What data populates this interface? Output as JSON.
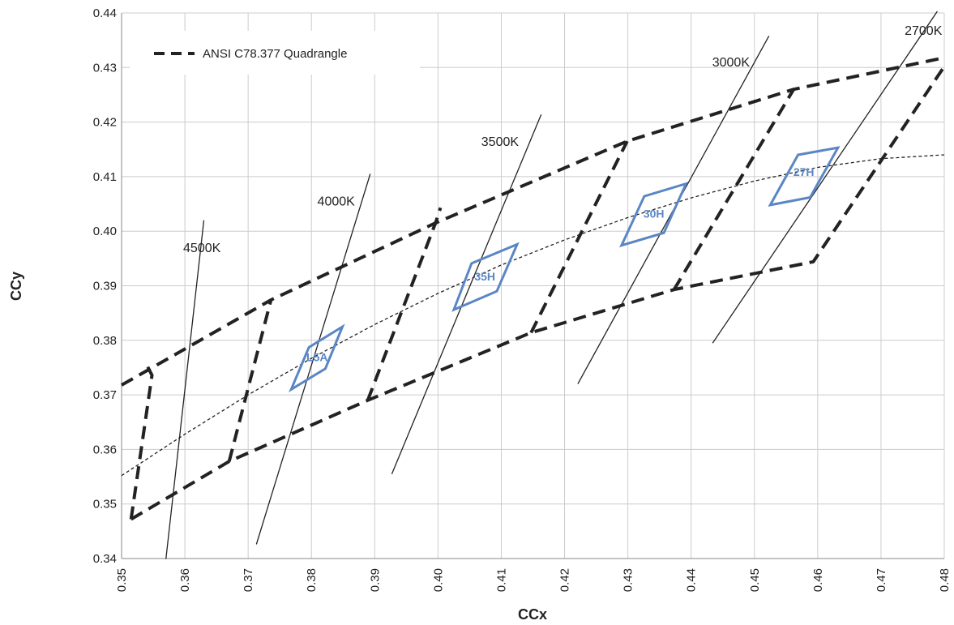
{
  "chart_data": {
    "type": "line",
    "xlabel": "CCx",
    "ylabel": "CCy",
    "xlim": [
      0.35,
      0.48
    ],
    "ylim": [
      0.34,
      0.44
    ],
    "x_ticks": [
      "0.35",
      "0.36",
      "0.37",
      "0.38",
      "0.39",
      "0.40",
      "0.41",
      "0.42",
      "0.43",
      "0.44",
      "0.45",
      "0.46",
      "0.47",
      "0.48"
    ],
    "y_ticks": [
      "0.34",
      "0.35",
      "0.36",
      "0.37",
      "0.38",
      "0.39",
      "0.40",
      "0.41",
      "0.42",
      "0.43",
      "0.44"
    ],
    "grid": true,
    "legend": {
      "position": "top-left",
      "entries": [
        {
          "label": "ANSI C78.377 Quadrangle",
          "style": "dashed",
          "color": "#222222"
        }
      ]
    },
    "quadrangle_envelope": {
      "upper": [
        [
          0.35,
          0.3718
        ],
        [
          0.3736,
          0.3874
        ],
        [
          0.3996,
          0.4015
        ],
        [
          0.4299,
          0.4165
        ],
        [
          0.4562,
          0.426
        ],
        [
          0.48,
          0.4318
        ]
      ],
      "lower": [
        [
          0.3515,
          0.3472
        ],
        [
          0.367,
          0.3578
        ],
        [
          0.3889,
          0.369
        ],
        [
          0.4147,
          0.3814
        ],
        [
          0.4373,
          0.3893
        ],
        [
          0.4593,
          0.3944
        ],
        [
          0.48,
          0.4302
        ]
      ]
    },
    "quadrangle_dividers": [
      [
        [
          0.3515,
          0.3472
        ],
        [
          0.3548,
          0.3736
        ],
        [
          0.3541,
          0.3752
        ]
      ],
      [
        [
          0.367,
          0.3578
        ],
        [
          0.3736,
          0.3874
        ]
      ],
      [
        [
          0.3889,
          0.369
        ],
        [
          0.3996,
          0.4015
        ],
        [
          0.4004,
          0.4043
        ]
      ],
      [
        [
          0.4147,
          0.3814
        ],
        [
          0.4299,
          0.4165
        ]
      ],
      [
        [
          0.4373,
          0.3893
        ],
        [
          0.4562,
          0.426
        ]
      ]
    ],
    "planckian_locus": [
      [
        0.35,
        0.3552
      ],
      [
        0.36,
        0.3628
      ],
      [
        0.37,
        0.37
      ],
      [
        0.38,
        0.3767
      ],
      [
        0.39,
        0.3829
      ],
      [
        0.4,
        0.3886
      ],
      [
        0.41,
        0.3938
      ],
      [
        0.42,
        0.3984
      ],
      [
        0.43,
        0.4025
      ],
      [
        0.44,
        0.4061
      ],
      [
        0.45,
        0.4092
      ],
      [
        0.46,
        0.4117
      ],
      [
        0.47,
        0.4133
      ],
      [
        0.48,
        0.414
      ]
    ],
    "isotherms": [
      {
        "name": "4500K",
        "points": [
          [
            0.357,
            0.3399
          ],
          [
            0.363,
            0.402
          ]
        ],
        "label_at": [
          0.3627,
          0.3962
        ]
      },
      {
        "name": "4000K",
        "points": [
          [
            0.3713,
            0.3426
          ],
          [
            0.3893,
            0.4105
          ]
        ],
        "label_at": [
          0.3839,
          0.4047
        ]
      },
      {
        "name": "3500K",
        "points": [
          [
            0.3927,
            0.3555
          ],
          [
            0.4163,
            0.4214
          ]
        ],
        "label_at": [
          0.4098,
          0.4156
        ]
      },
      {
        "name": "3000K",
        "points": [
          [
            0.4221,
            0.372
          ],
          [
            0.4523,
            0.4358
          ]
        ],
        "label_at": [
          0.4463,
          0.4302
        ]
      },
      {
        "name": "2700K",
        "points": [
          [
            0.4434,
            0.3795
          ],
          [
            0.4789,
            0.4403
          ]
        ],
        "label_at": [
          0.4767,
          0.436
        ]
      }
    ],
    "bins": [
      {
        "label": "L5A",
        "points": [
          [
            0.3768,
            0.371
          ],
          [
            0.3796,
            0.3787
          ],
          [
            0.3849,
            0.3825
          ],
          [
            0.3822,
            0.3748
          ]
        ],
        "label_at": [
          0.3809,
          0.3762
        ]
      },
      {
        "label": "35H",
        "points": [
          [
            0.4025,
            0.3856
          ],
          [
            0.4053,
            0.3941
          ],
          [
            0.4125,
            0.3976
          ],
          [
            0.4093,
            0.389
          ]
        ],
        "label_at": [
          0.4074,
          0.391
        ]
      },
      {
        "label": "30H",
        "points": [
          [
            0.429,
            0.3974
          ],
          [
            0.4326,
            0.4064
          ],
          [
            0.4392,
            0.4087
          ],
          [
            0.4357,
            0.3997
          ]
        ],
        "label_at": [
          0.4341,
          0.4025
        ]
      },
      {
        "label": "27H",
        "points": [
          [
            0.4525,
            0.4048
          ],
          [
            0.4569,
            0.414
          ],
          [
            0.4632,
            0.4153
          ],
          [
            0.4588,
            0.4062
          ]
        ],
        "label_at": [
          0.4578,
          0.4101
        ]
      }
    ]
  }
}
